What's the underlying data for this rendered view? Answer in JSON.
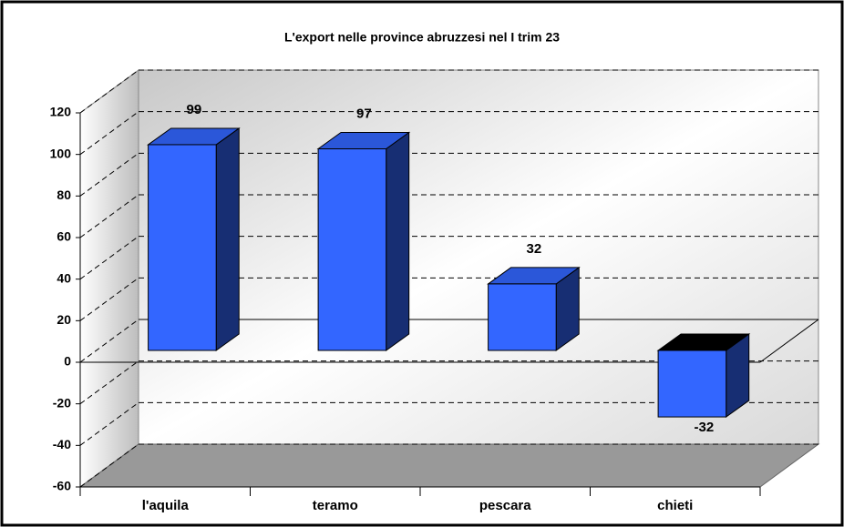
{
  "chart_data": {
    "type": "bar3d",
    "title": "L'export nelle province abruzzesi nel I trim 23",
    "categories": [
      "l'aquila",
      "teramo",
      "pescara",
      "chieti"
    ],
    "values": [
      99,
      97,
      32,
      -32
    ],
    "color": "#3366ff",
    "ylim": [
      -60,
      120
    ],
    "yticks": [
      -60,
      -40,
      -20,
      0,
      20,
      40,
      60,
      80,
      100,
      120
    ],
    "grid": true
  }
}
